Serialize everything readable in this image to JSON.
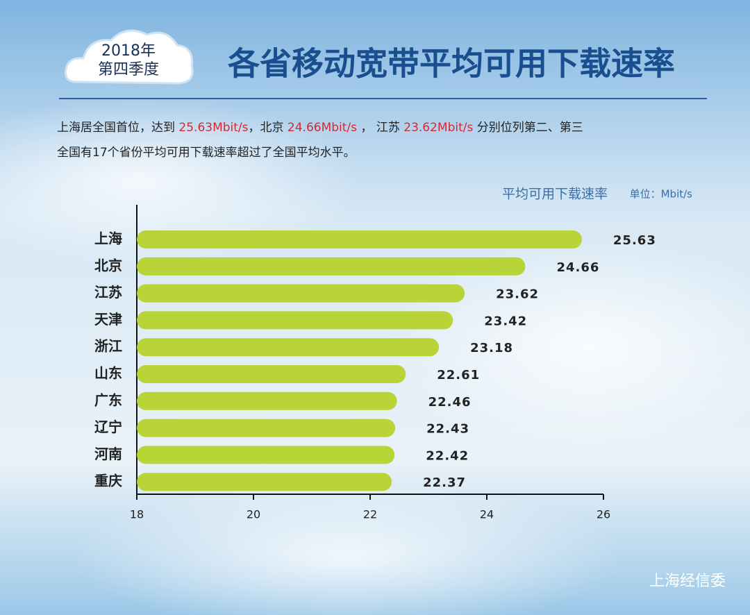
{
  "badge": {
    "line1": "2018年",
    "line2": "第四季度"
  },
  "title": "各省移动宽带平均可用下载速率",
  "summary": {
    "lines": [
      [
        {
          "text": "上海居全国首位，达到 "
        },
        {
          "text": "25.63Mbit/s",
          "color": "#d8282e"
        },
        {
          "text": "，北京 "
        },
        {
          "text": "24.66Mbit/s",
          "color": "#d8282e"
        },
        {
          "text": " ， 江苏 "
        },
        {
          "text": "23.62Mbit/s",
          "color": "#d8282e"
        },
        {
          "text": " 分别位列第二、第三"
        }
      ],
      [
        {
          "text": "全国有17个省份平均可用下载速率超过了全国平均水平。"
        }
      ]
    ]
  },
  "chart_data": {
    "type": "bar",
    "orientation": "horizontal",
    "axis_title": "平均可用下载速率",
    "unit": "单位：Mbit/s",
    "categories": [
      "上海",
      "北京",
      "江苏",
      "天津",
      "浙江",
      "山东",
      "广东",
      "辽宁",
      "河南",
      "重庆"
    ],
    "values": [
      25.63,
      24.66,
      23.62,
      23.42,
      23.18,
      22.61,
      22.46,
      22.43,
      22.42,
      22.37
    ],
    "color": "#b8d437",
    "xlim": [
      18,
      26
    ],
    "xticks": [
      18,
      20,
      22,
      24,
      26
    ]
  },
  "footer": "上海经信委"
}
